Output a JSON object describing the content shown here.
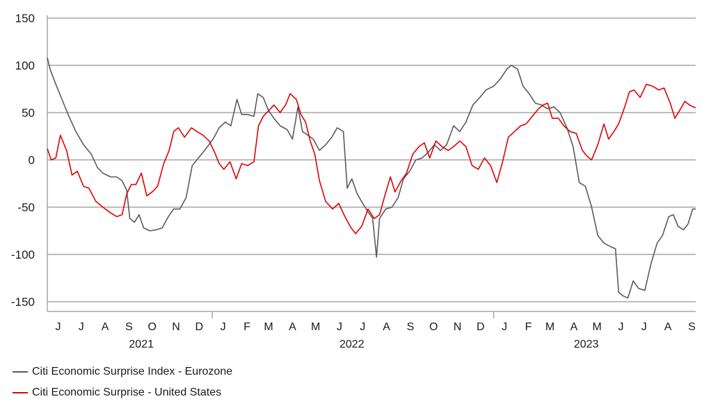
{
  "chart_data": {
    "type": "line",
    "title": "",
    "xlabel": "",
    "ylabel": "",
    "ylim": [
      -150,
      150
    ],
    "y_ticks": [
      150,
      100,
      50,
      0,
      -50,
      -100,
      -150
    ],
    "grid": "horizontal",
    "legend_placement": "bottom-left",
    "x_range": [
      "2021-06-01",
      "2023-09-20"
    ],
    "month_ticks": [
      {
        "label": "J",
        "date": "2021-06-15"
      },
      {
        "label": "J",
        "date": "2021-07-15"
      },
      {
        "label": "A",
        "date": "2021-08-15"
      },
      {
        "label": "S",
        "date": "2021-09-15"
      },
      {
        "label": "O",
        "date": "2021-10-15"
      },
      {
        "label": "N",
        "date": "2021-11-15"
      },
      {
        "label": "D",
        "date": "2021-12-15"
      },
      {
        "label": "J",
        "date": "2022-01-15"
      },
      {
        "label": "F",
        "date": "2022-02-15"
      },
      {
        "label": "M",
        "date": "2022-03-15"
      },
      {
        "label": "A",
        "date": "2022-04-15"
      },
      {
        "label": "M",
        "date": "2022-05-15"
      },
      {
        "label": "J",
        "date": "2022-06-15"
      },
      {
        "label": "J",
        "date": "2022-07-15"
      },
      {
        "label": "A",
        "date": "2022-08-15"
      },
      {
        "label": "S",
        "date": "2022-09-15"
      },
      {
        "label": "O",
        "date": "2022-10-15"
      },
      {
        "label": "N",
        "date": "2022-11-15"
      },
      {
        "label": "D",
        "date": "2022-12-15"
      },
      {
        "label": "J",
        "date": "2023-01-15"
      },
      {
        "label": "F",
        "date": "2023-02-15"
      },
      {
        "label": "M",
        "date": "2023-03-15"
      },
      {
        "label": "A",
        "date": "2023-04-15"
      },
      {
        "label": "M",
        "date": "2023-05-15"
      },
      {
        "label": "J",
        "date": "2023-06-15"
      },
      {
        "label": "J",
        "date": "2023-07-15"
      },
      {
        "label": "A",
        "date": "2023-08-15"
      },
      {
        "label": "S",
        "date": "2023-09-15"
      }
    ],
    "year_separators": [
      "2022-01-01",
      "2023-01-01"
    ],
    "year_labels": [
      {
        "label": "2021",
        "date": "2021-10-01"
      },
      {
        "label": "2022",
        "date": "2022-07-01"
      },
      {
        "label": "2023",
        "date": "2023-05-01"
      }
    ],
    "series": [
      {
        "name": "Citi Economic Surprise Index - Eurozone",
        "color": "#5a5a5a",
        "points": [
          [
            "2021-06-01",
            108
          ],
          [
            "2021-06-05",
            95
          ],
          [
            "2021-06-12",
            80
          ],
          [
            "2021-06-20",
            64
          ],
          [
            "2021-06-28",
            48
          ],
          [
            "2021-07-08",
            30
          ],
          [
            "2021-07-18",
            16
          ],
          [
            "2021-07-28",
            6
          ],
          [
            "2021-08-05",
            -8
          ],
          [
            "2021-08-12",
            -14
          ],
          [
            "2021-08-22",
            -18
          ],
          [
            "2021-08-30",
            -18
          ],
          [
            "2021-09-06",
            -22
          ],
          [
            "2021-09-12",
            -32
          ],
          [
            "2021-09-16",
            -62
          ],
          [
            "2021-09-22",
            -66
          ],
          [
            "2021-09-28",
            -58
          ],
          [
            "2021-10-04",
            -72
          ],
          [
            "2021-10-12",
            -75
          ],
          [
            "2021-10-20",
            -74
          ],
          [
            "2021-10-28",
            -72
          ],
          [
            "2021-11-05",
            -60
          ],
          [
            "2021-11-12",
            -52
          ],
          [
            "2021-11-20",
            -52
          ],
          [
            "2021-11-28",
            -40
          ],
          [
            "2021-12-06",
            -6
          ],
          [
            "2021-12-14",
            2
          ],
          [
            "2021-12-22",
            10
          ],
          [
            "2022-01-02",
            22
          ],
          [
            "2022-01-10",
            34
          ],
          [
            "2022-01-18",
            40
          ],
          [
            "2022-01-25",
            36
          ],
          [
            "2022-02-02",
            64
          ],
          [
            "2022-02-08",
            48
          ],
          [
            "2022-02-16",
            48
          ],
          [
            "2022-02-24",
            46
          ],
          [
            "2022-03-01",
            70
          ],
          [
            "2022-03-08",
            66
          ],
          [
            "2022-03-15",
            52
          ],
          [
            "2022-03-22",
            44
          ],
          [
            "2022-03-30",
            36
          ],
          [
            "2022-04-08",
            32
          ],
          [
            "2022-04-15",
            22
          ],
          [
            "2022-04-22",
            56
          ],
          [
            "2022-04-28",
            30
          ],
          [
            "2022-05-05",
            26
          ],
          [
            "2022-05-12",
            22
          ],
          [
            "2022-05-20",
            10
          ],
          [
            "2022-05-28",
            16
          ],
          [
            "2022-06-05",
            24
          ],
          [
            "2022-06-12",
            34
          ],
          [
            "2022-06-20",
            30
          ],
          [
            "2022-06-25",
            -30
          ],
          [
            "2022-07-01",
            -20
          ],
          [
            "2022-07-08",
            -36
          ],
          [
            "2022-07-15",
            -46
          ],
          [
            "2022-07-22",
            -55
          ],
          [
            "2022-07-28",
            -62
          ],
          [
            "2022-08-02",
            -103
          ],
          [
            "2022-08-06",
            -62
          ],
          [
            "2022-08-14",
            -52
          ],
          [
            "2022-08-22",
            -50
          ],
          [
            "2022-08-30",
            -40
          ],
          [
            "2022-09-06",
            -20
          ],
          [
            "2022-09-14",
            -12
          ],
          [
            "2022-09-22",
            0
          ],
          [
            "2022-09-30",
            2
          ],
          [
            "2022-10-08",
            8
          ],
          [
            "2022-10-16",
            16
          ],
          [
            "2022-10-24",
            10
          ],
          [
            "2022-11-01",
            16
          ],
          [
            "2022-11-10",
            36
          ],
          [
            "2022-11-18",
            30
          ],
          [
            "2022-11-26",
            40
          ],
          [
            "2022-12-05",
            58
          ],
          [
            "2022-12-14",
            66
          ],
          [
            "2022-12-22",
            74
          ],
          [
            "2023-01-01",
            78
          ],
          [
            "2023-01-10",
            86
          ],
          [
            "2023-01-18",
            96
          ],
          [
            "2023-01-24",
            100
          ],
          [
            "2023-02-01",
            96
          ],
          [
            "2023-02-08",
            78
          ],
          [
            "2023-02-16",
            70
          ],
          [
            "2023-02-24",
            60
          ],
          [
            "2023-03-04",
            58
          ],
          [
            "2023-03-12",
            54
          ],
          [
            "2023-03-20",
            56
          ],
          [
            "2023-03-28",
            50
          ],
          [
            "2023-04-06",
            34
          ],
          [
            "2023-04-14",
            14
          ],
          [
            "2023-04-22",
            -24
          ],
          [
            "2023-04-30",
            -28
          ],
          [
            "2023-05-08",
            -50
          ],
          [
            "2023-05-16",
            -80
          ],
          [
            "2023-05-24",
            -88
          ],
          [
            "2023-06-02",
            -92
          ],
          [
            "2023-06-08",
            -94
          ],
          [
            "2023-06-12",
            -140
          ],
          [
            "2023-06-18",
            -144
          ],
          [
            "2023-06-24",
            -146
          ],
          [
            "2023-07-01",
            -128
          ],
          [
            "2023-07-08",
            -136
          ],
          [
            "2023-07-16",
            -138
          ],
          [
            "2023-07-24",
            -110
          ],
          [
            "2023-08-01",
            -88
          ],
          [
            "2023-08-08",
            -80
          ],
          [
            "2023-08-16",
            -60
          ],
          [
            "2023-08-22",
            -58
          ],
          [
            "2023-08-28",
            -70
          ],
          [
            "2023-09-04",
            -74
          ],
          [
            "2023-09-10",
            -68
          ],
          [
            "2023-09-16",
            -52
          ],
          [
            "2023-09-20",
            -52
          ]
        ]
      },
      {
        "name": "Citi Economic Surprise - United States",
        "color": "#e00000",
        "points": [
          [
            "2021-06-01",
            12
          ],
          [
            "2021-06-06",
            0
          ],
          [
            "2021-06-12",
            2
          ],
          [
            "2021-06-18",
            26
          ],
          [
            "2021-06-26",
            10
          ],
          [
            "2021-07-03",
            -16
          ],
          [
            "2021-07-10",
            -12
          ],
          [
            "2021-07-18",
            -28
          ],
          [
            "2021-07-25",
            -30
          ],
          [
            "2021-08-03",
            -44
          ],
          [
            "2021-08-12",
            -50
          ],
          [
            "2021-08-22",
            -56
          ],
          [
            "2021-08-30",
            -60
          ],
          [
            "2021-09-06",
            -58
          ],
          [
            "2021-09-12",
            -36
          ],
          [
            "2021-09-18",
            -26
          ],
          [
            "2021-09-24",
            -26
          ],
          [
            "2021-10-01",
            -14
          ],
          [
            "2021-10-08",
            -38
          ],
          [
            "2021-10-15",
            -34
          ],
          [
            "2021-10-22",
            -28
          ],
          [
            "2021-10-30",
            -4
          ],
          [
            "2021-11-06",
            10
          ],
          [
            "2021-11-12",
            30
          ],
          [
            "2021-11-18",
            34
          ],
          [
            "2021-11-26",
            24
          ],
          [
            "2021-12-05",
            34
          ],
          [
            "2021-12-12",
            30
          ],
          [
            "2021-12-20",
            26
          ],
          [
            "2021-12-28",
            20
          ],
          [
            "2022-01-04",
            8
          ],
          [
            "2022-01-10",
            -4
          ],
          [
            "2022-01-16",
            -10
          ],
          [
            "2022-01-24",
            -2
          ],
          [
            "2022-02-01",
            -20
          ],
          [
            "2022-02-08",
            -4
          ],
          [
            "2022-02-16",
            -6
          ],
          [
            "2022-02-24",
            -2
          ],
          [
            "2022-03-02",
            36
          ],
          [
            "2022-03-08",
            46
          ],
          [
            "2022-03-15",
            52
          ],
          [
            "2022-03-22",
            58
          ],
          [
            "2022-03-30",
            50
          ],
          [
            "2022-04-06",
            58
          ],
          [
            "2022-04-12",
            70
          ],
          [
            "2022-04-20",
            64
          ],
          [
            "2022-04-26",
            48
          ],
          [
            "2022-05-02",
            40
          ],
          [
            "2022-05-08",
            20
          ],
          [
            "2022-05-14",
            6
          ],
          [
            "2022-05-20",
            -22
          ],
          [
            "2022-05-28",
            -44
          ],
          [
            "2022-06-06",
            -52
          ],
          [
            "2022-06-14",
            -46
          ],
          [
            "2022-06-22",
            -60
          ],
          [
            "2022-06-30",
            -72
          ],
          [
            "2022-07-06",
            -78
          ],
          [
            "2022-07-14",
            -70
          ],
          [
            "2022-07-22",
            -52
          ],
          [
            "2022-07-30",
            -62
          ],
          [
            "2022-08-06",
            -58
          ],
          [
            "2022-08-12",
            -40
          ],
          [
            "2022-08-20",
            -18
          ],
          [
            "2022-08-26",
            -34
          ],
          [
            "2022-09-03",
            -22
          ],
          [
            "2022-09-10",
            -14
          ],
          [
            "2022-09-18",
            6
          ],
          [
            "2022-09-26",
            14
          ],
          [
            "2022-10-03",
            18
          ],
          [
            "2022-10-10",
            2
          ],
          [
            "2022-10-18",
            20
          ],
          [
            "2022-10-26",
            14
          ],
          [
            "2022-11-03",
            10
          ],
          [
            "2022-11-10",
            14
          ],
          [
            "2022-11-18",
            20
          ],
          [
            "2022-11-26",
            14
          ],
          [
            "2022-12-04",
            -6
          ],
          [
            "2022-12-12",
            -10
          ],
          [
            "2022-12-20",
            2
          ],
          [
            "2022-12-28",
            -6
          ],
          [
            "2023-01-05",
            -24
          ],
          [
            "2023-01-12",
            -4
          ],
          [
            "2023-01-20",
            24
          ],
          [
            "2023-01-28",
            30
          ],
          [
            "2023-02-05",
            36
          ],
          [
            "2023-02-12",
            38
          ],
          [
            "2023-02-20",
            46
          ],
          [
            "2023-02-28",
            54
          ],
          [
            "2023-03-06",
            58
          ],
          [
            "2023-03-12",
            60
          ],
          [
            "2023-03-18",
            44
          ],
          [
            "2023-03-26",
            44
          ],
          [
            "2023-04-02",
            36
          ],
          [
            "2023-04-10",
            30
          ],
          [
            "2023-04-18",
            28
          ],
          [
            "2023-04-26",
            10
          ],
          [
            "2023-05-02",
            4
          ],
          [
            "2023-05-08",
            0
          ],
          [
            "2023-05-16",
            16
          ],
          [
            "2023-05-24",
            38
          ],
          [
            "2023-05-30",
            22
          ],
          [
            "2023-06-06",
            30
          ],
          [
            "2023-06-12",
            38
          ],
          [
            "2023-06-20",
            56
          ],
          [
            "2023-06-26",
            72
          ],
          [
            "2023-07-02",
            74
          ],
          [
            "2023-07-10",
            66
          ],
          [
            "2023-07-18",
            80
          ],
          [
            "2023-07-26",
            78
          ],
          [
            "2023-08-03",
            74
          ],
          [
            "2023-08-10",
            76
          ],
          [
            "2023-08-18",
            60
          ],
          [
            "2023-08-24",
            44
          ],
          [
            "2023-08-30",
            52
          ],
          [
            "2023-09-06",
            62
          ],
          [
            "2023-09-12",
            58
          ],
          [
            "2023-09-20",
            55
          ]
        ]
      }
    ]
  }
}
